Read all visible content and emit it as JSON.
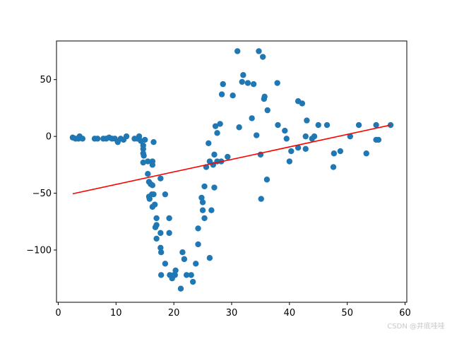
{
  "watermark": "CSDN @井底哇哇",
  "chart_data": {
    "type": "scatter",
    "title": "",
    "xlabel": "",
    "ylabel": "",
    "xlim": [
      -0.3,
      60.3
    ],
    "ylim": [
      -146,
      84
    ],
    "xticks": [
      0,
      10,
      20,
      30,
      40,
      50,
      60
    ],
    "yticks": [
      -100,
      -50,
      0,
      50
    ],
    "ytick_labels": [
      "−100",
      "−50",
      "0",
      "50"
    ],
    "grid": false,
    "legend": "none",
    "colors": {
      "points": "#1f77b4",
      "line": "#ff0000"
    },
    "series": [
      {
        "type": "scatter",
        "points": [
          [
            2.5,
            -1
          ],
          [
            3,
            -2
          ],
          [
            3.5,
            -2
          ],
          [
            3.7,
            0
          ],
          [
            4.2,
            -2
          ],
          [
            6.3,
            -2
          ],
          [
            6.8,
            -2
          ],
          [
            7.8,
            -2
          ],
          [
            8.3,
            -2
          ],
          [
            8.8,
            -1
          ],
          [
            9.3,
            -2
          ],
          [
            9.8,
            -2
          ],
          [
            10.3,
            -5
          ],
          [
            10.8,
            -2
          ],
          [
            11.3,
            -3
          ],
          [
            11.8,
            0
          ],
          [
            13.2,
            -2
          ],
          [
            13.7,
            -2
          ],
          [
            14,
            0
          ],
          [
            14.3,
            -4
          ],
          [
            14.7,
            -8
          ],
          [
            14.7,
            -11
          ],
          [
            14.7,
            -15
          ],
          [
            14.8,
            -17
          ],
          [
            14.7,
            -23
          ],
          [
            15,
            -3
          ],
          [
            15.5,
            -22
          ],
          [
            15.5,
            -33
          ],
          [
            15.7,
            -40
          ],
          [
            15.7,
            -53
          ],
          [
            15.8,
            -55
          ],
          [
            16,
            -42
          ],
          [
            16.3,
            -25
          ],
          [
            16.3,
            -22
          ],
          [
            16.3,
            -43
          ],
          [
            16.2,
            -51
          ],
          [
            16.5,
            -51
          ],
          [
            16.3,
            -62
          ],
          [
            16.5,
            -5
          ],
          [
            16.7,
            -60
          ],
          [
            16.8,
            -80
          ],
          [
            17,
            -72
          ],
          [
            17,
            -78
          ],
          [
            17,
            -90
          ],
          [
            17.7,
            -37
          ],
          [
            17.7,
            -85
          ],
          [
            17.7,
            -98
          ],
          [
            17.8,
            -102
          ],
          [
            17.8,
            -122
          ],
          [
            18.5,
            -51
          ],
          [
            18.5,
            -112
          ],
          [
            19.2,
            -72
          ],
          [
            19.2,
            -85
          ],
          [
            19.3,
            -122
          ],
          [
            19.7,
            -125
          ],
          [
            20,
            -122
          ],
          [
            20.2,
            -122
          ],
          [
            20.3,
            -118
          ],
          [
            21.2,
            -134
          ],
          [
            21.5,
            -102
          ],
          [
            21.8,
            -108
          ],
          [
            22.2,
            -122
          ],
          [
            23,
            -122
          ],
          [
            23.3,
            -128
          ],
          [
            23.8,
            -112
          ],
          [
            24.2,
            -95
          ],
          [
            24.2,
            -81
          ],
          [
            24.8,
            -54
          ],
          [
            25,
            -65
          ],
          [
            25,
            -58
          ],
          [
            25.3,
            -72
          ],
          [
            25.3,
            -44
          ],
          [
            25.6,
            -27
          ],
          [
            26,
            -6
          ],
          [
            26.2,
            -22
          ],
          [
            26.2,
            -107
          ],
          [
            26.5,
            -65
          ],
          [
            26.8,
            -25
          ],
          [
            27,
            -16
          ],
          [
            27,
            -45
          ],
          [
            27.2,
            9
          ],
          [
            27.5,
            3
          ],
          [
            27.5,
            -22
          ],
          [
            28,
            11
          ],
          [
            28.2,
            -22
          ],
          [
            28.3,
            37
          ],
          [
            28.5,
            46
          ],
          [
            29.3,
            -18
          ],
          [
            30.2,
            36
          ],
          [
            31,
            75
          ],
          [
            31.3,
            8
          ],
          [
            31.8,
            48
          ],
          [
            32,
            54
          ],
          [
            32.8,
            47
          ],
          [
            33.5,
            16
          ],
          [
            33.8,
            46
          ],
          [
            34.3,
            1
          ],
          [
            34.7,
            75
          ],
          [
            35,
            -16
          ],
          [
            35.1,
            -55
          ],
          [
            35.4,
            70
          ],
          [
            35.6,
            33
          ],
          [
            35.7,
            35
          ],
          [
            36.1,
            -38
          ],
          [
            36.2,
            23
          ],
          [
            37.9,
            47
          ],
          [
            38,
            10
          ],
          [
            39.2,
            5
          ],
          [
            39.5,
            -2
          ],
          [
            40,
            -22
          ],
          [
            40.3,
            -13
          ],
          [
            41.5,
            31
          ],
          [
            41.5,
            -10
          ],
          [
            42.2,
            29
          ],
          [
            42.8,
            0
          ],
          [
            42.8,
            -11
          ],
          [
            43,
            14
          ],
          [
            43.9,
            -2
          ],
          [
            44.3,
            0
          ],
          [
            45,
            10
          ],
          [
            46.5,
            10
          ],
          [
            47.6,
            -27
          ],
          [
            47.7,
            -15
          ],
          [
            48.8,
            -13
          ],
          [
            50.5,
            0
          ],
          [
            52,
            10
          ],
          [
            53.3,
            -15
          ],
          [
            55,
            10
          ],
          [
            55,
            -3
          ],
          [
            55.4,
            -3
          ],
          [
            57.5,
            10
          ]
        ]
      },
      {
        "type": "line",
        "points": [
          [
            2.5,
            -50.5
          ],
          [
            57.5,
            10
          ]
        ]
      }
    ]
  }
}
